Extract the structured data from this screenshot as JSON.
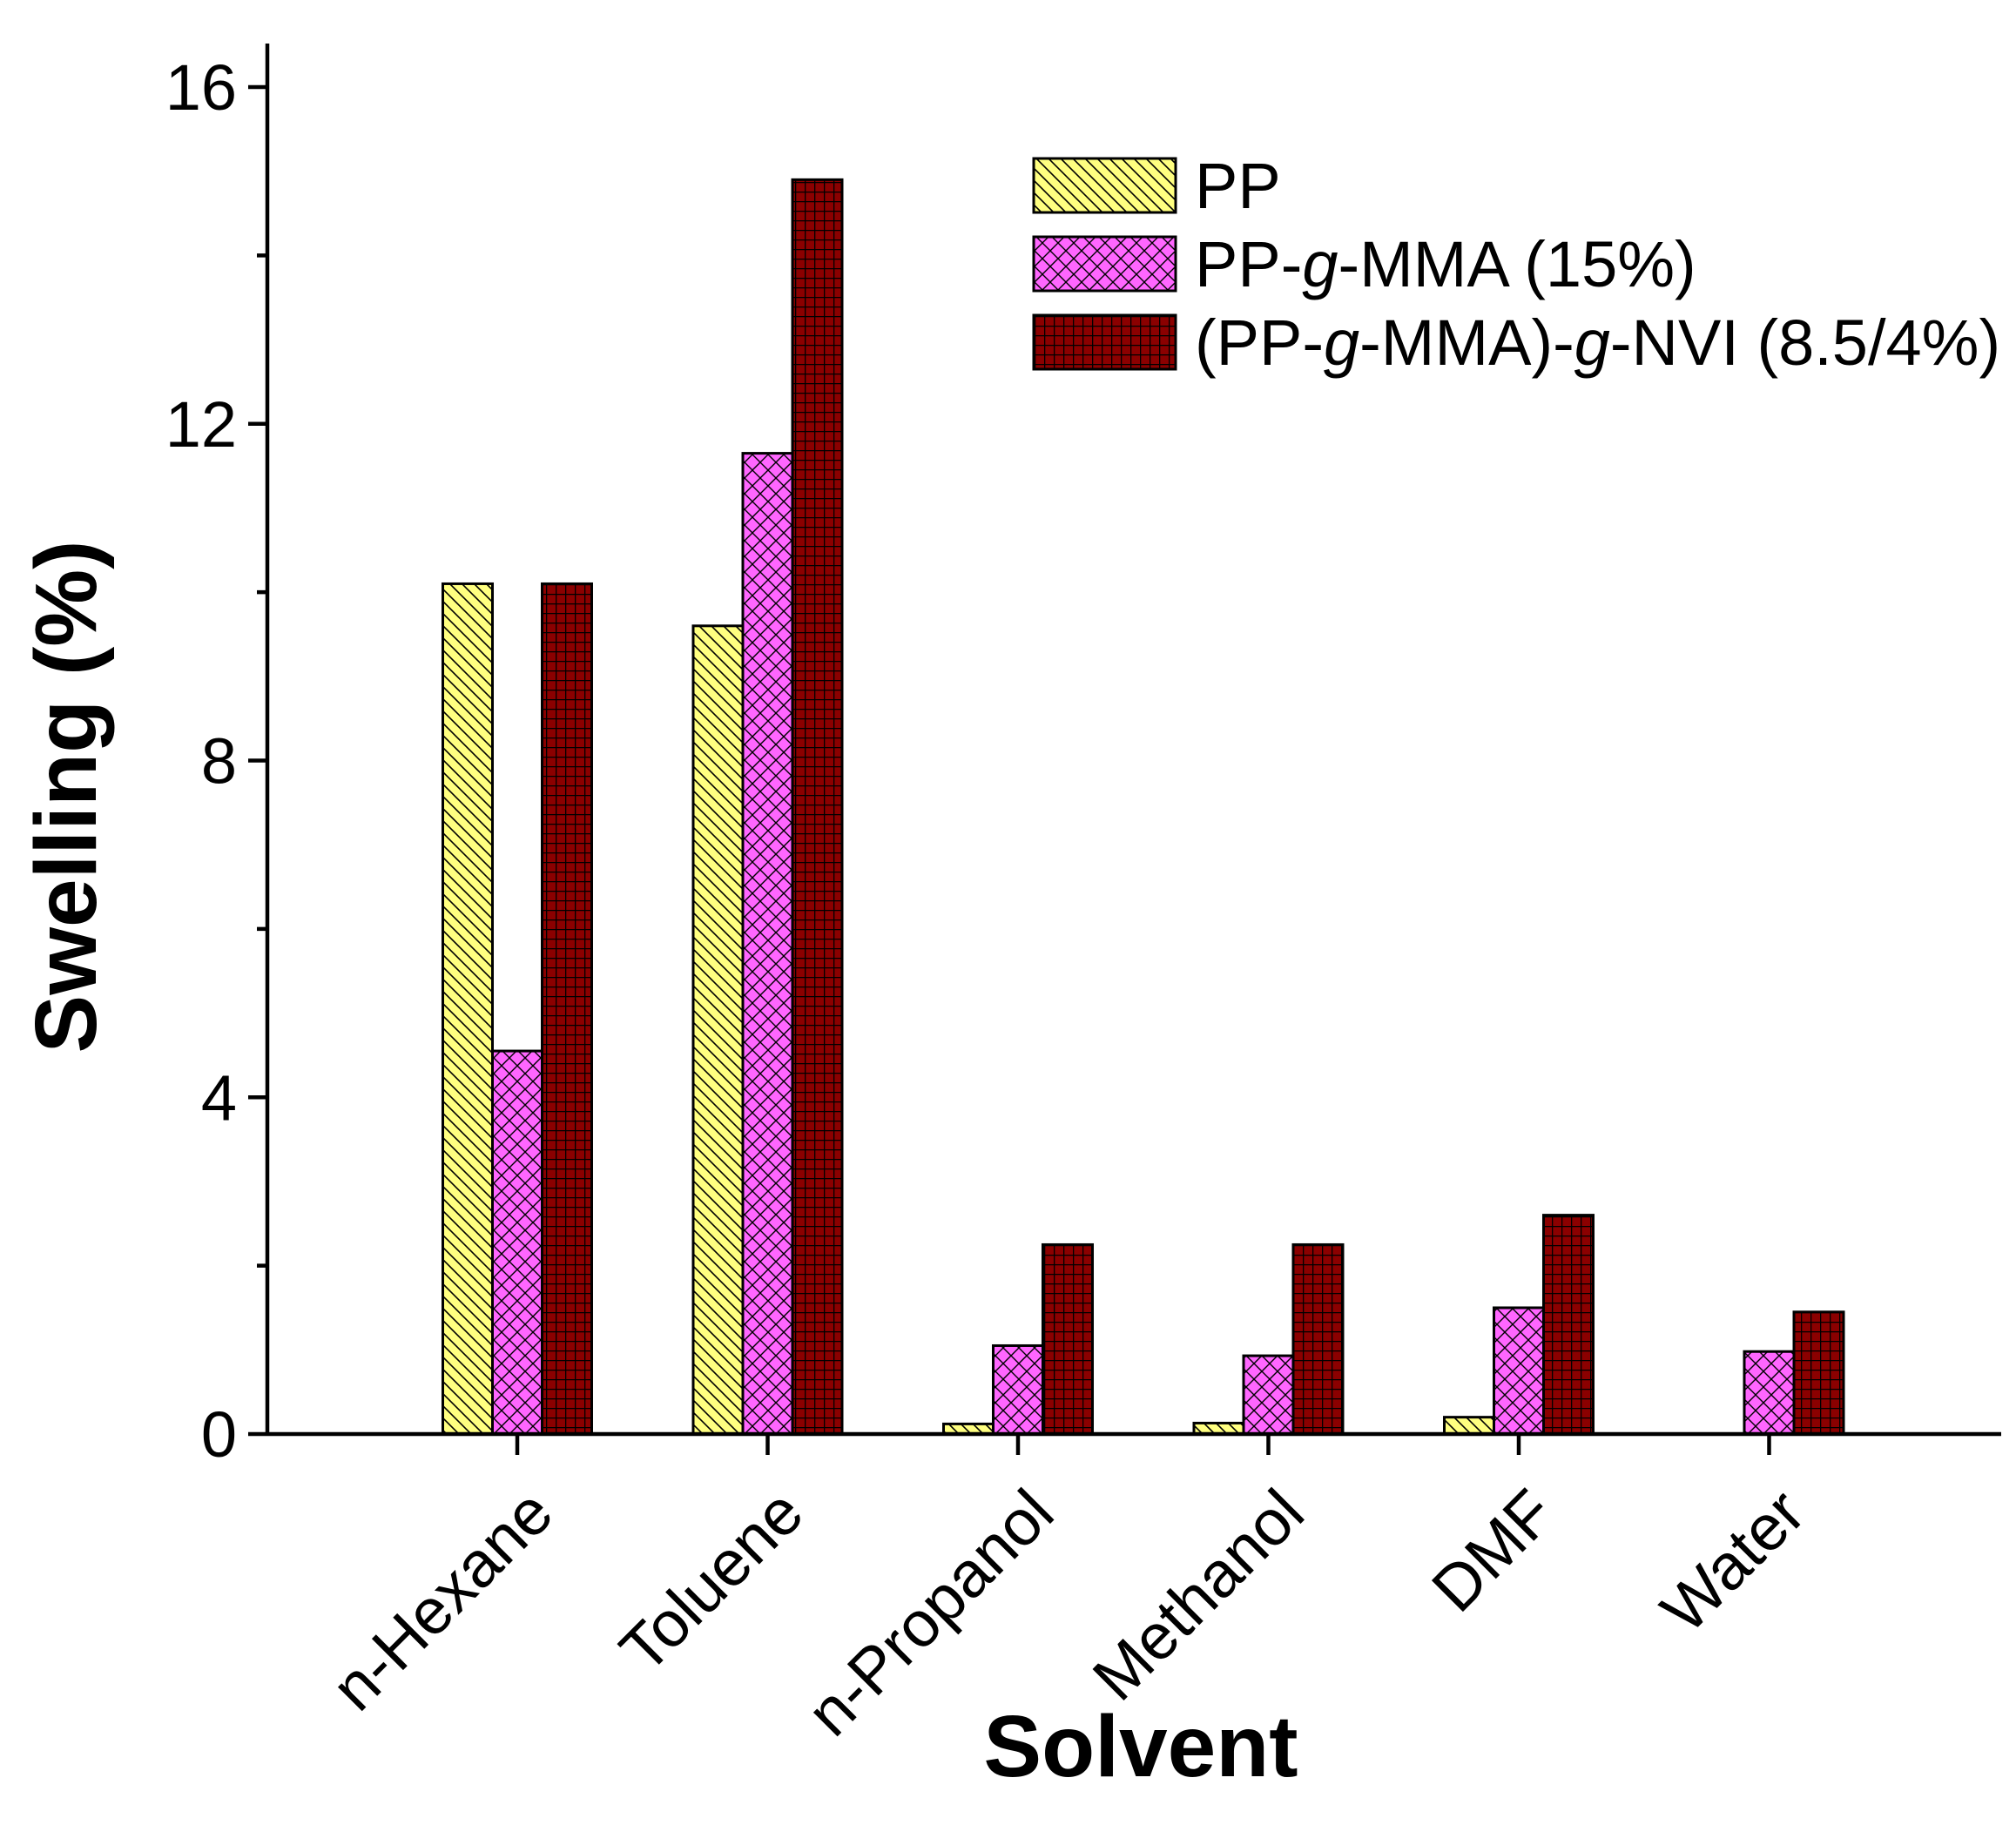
{
  "chart_data": {
    "type": "bar",
    "title": "",
    "xlabel": "Solvent",
    "ylabel": "Swelling (%)",
    "ylim": [
      0,
      16.6
    ],
    "yticks": [
      0,
      4,
      8,
      12,
      16
    ],
    "categories": [
      "n-Hexane",
      "Toluene",
      "n-Propanol",
      "Methanol",
      "DMF",
      "Water"
    ],
    "series": [
      {
        "name": "PP",
        "legend_parts": [
          {
            "t": "PP",
            "i": false
          }
        ],
        "color": "#FFFF80",
        "pattern": "diagonal",
        "values": [
          10.1,
          9.6,
          0.12,
          0.13,
          0.2,
          0.0
        ]
      },
      {
        "name": "PP-g-MMA (15%)",
        "legend_parts": [
          {
            "t": "PP-",
            "i": false
          },
          {
            "t": "g",
            "i": true
          },
          {
            "t": "-MMA (15%)",
            "i": false
          }
        ],
        "color": "#FF66FF",
        "pattern": "crosshatch",
        "values": [
          4.55,
          11.65,
          1.05,
          0.93,
          1.5,
          0.98
        ]
      },
      {
        "name": "(PP-g-MMA)-g-NVI (8.5/4%)",
        "legend_parts": [
          {
            "t": "(PP-",
            "i": false
          },
          {
            "t": "g",
            "i": true
          },
          {
            "t": "-MMA)-",
            "i": false
          },
          {
            "t": "g",
            "i": true
          },
          {
            "t": "-NVI (8.5/4%)",
            "i": false
          }
        ],
        "color": "#8B0000",
        "pattern": "grid",
        "values": [
          10.1,
          14.9,
          2.25,
          2.25,
          2.6,
          1.45
        ]
      }
    ],
    "legend_position": "top-right"
  }
}
